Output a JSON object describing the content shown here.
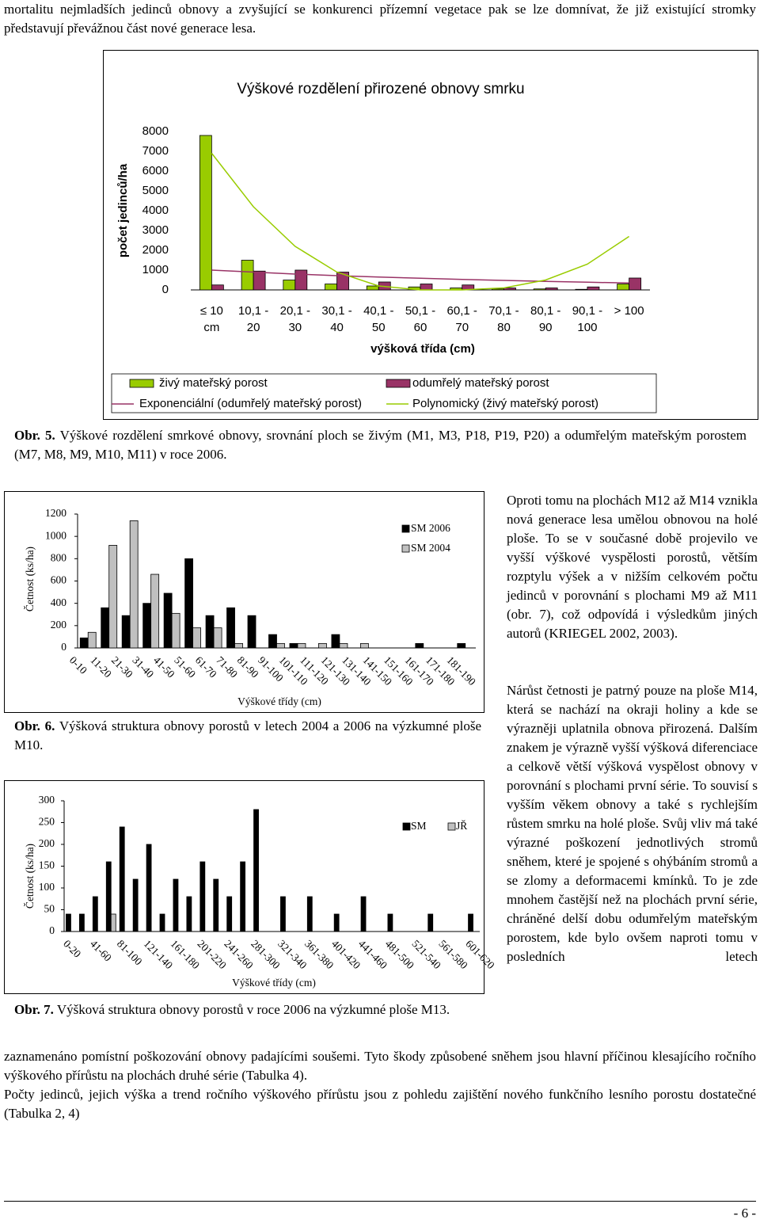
{
  "intro": "mortalitu nejmladších jedinců obnovy a zvyšující se konkurenci přízemní vegetace pak se lze domnívat, že již existující stromky představují převážnou část nové generace lesa.",
  "captions": [
    {
      "label": "Obr. 5.",
      "text": "Výškové rozdělení smrkové obnovy, srovnání ploch se živým (M1, M3, P18, P19, P20) a odumřelým mateřským porostem (M7, M8, M9, M10, M11) v roce 2006."
    },
    {
      "label": "Obr. 6.",
      "text": "Výšková struktura obnovy porostů v letech 2004 a 2006 na výzkumné ploše M10."
    },
    {
      "label": "Obr. 7.",
      "text": "Výšková struktura obnovy porostů v roce 2006 na výzkumné ploše M13."
    }
  ],
  "right_column": [
    "Oproti tomu na plochách M12 až M14 vznikla nová generace lesa umělou obnovou na holé ploše. To se v současné době projevilo ve vyšší výškové vyspělosti porostů, větším rozptylu výšek a v nižším celkovém počtu jedinců v porovnání s plochami M9 až M11 (obr. 7), což odpovídá i výsledkům jiných autorů (KRIEGEL 2002, 2003).",
    "Nárůst četnosti je patrný pouze na ploše M14, která se nachází na okraji holiny a kde se výrazněji uplatnila obnova přirozená. Dalším znakem je výrazně vyšší výšková diferenciace a celkově větší výšková vyspělost obnovy v porovnání s plochami první série. To souvisí s vyšším věkem obnovy a také s rychlejším růstem smrku na holé ploše. Svůj vliv má také výrazné poškození jednotlivých stromů sněhem, které je spojené s ohýbáním stromů a se zlomy a deformacemi kmínků. To je zde mnohem častější než na plochách první série, chráněné delší dobu odumřelým mateřským porostem, kde bylo ovšem naproti tomu v posledních letech"
  ],
  "continuation": "zaznamenáno pomístní poškozování obnovy padajícími soušemi. Tyto škody způsobené sněhem jsou hlavní příčinou klesajícího ročního výškového přírůstu na plochách druhé série (Tabulka 4).",
  "closing": "Počty jedinců, jejich výška a trend ročního výškového přírůstu jsou z pohledu zajištění nového funkčního lesního porostu dostatečné (Tabulka 2, 4)",
  "page_number": "- 6 -",
  "chart_data": [
    {
      "type": "bar",
      "title": "Výškové rozdělení přirozené obnovy smrku",
      "y_label": "počet jedinců/ha",
      "x_label": "výšková třída (cm)",
      "categories": [
        [
          "≤ 10",
          "cm"
        ],
        [
          "10,1 -",
          "20"
        ],
        [
          "20,1 -",
          "30"
        ],
        [
          "30,1 -",
          "40"
        ],
        [
          "40,1 -",
          "50"
        ],
        [
          "50,1 -",
          "60"
        ],
        [
          "60,1 -",
          "70"
        ],
        [
          "70,1 -",
          "80"
        ],
        [
          "80,1 -",
          "90"
        ],
        [
          "90,1 -",
          "100"
        ],
        [
          "> 100"
        ]
      ],
      "series": [
        {
          "name": "živý mateřský porost",
          "color": "#99cc00",
          "values": [
            7800,
            1500,
            500,
            300,
            200,
            150,
            100,
            50,
            50,
            30,
            300
          ]
        },
        {
          "name": "odumřelý mateřský porost",
          "color": "#993366",
          "values": [
            250,
            950,
            1000,
            900,
            400,
            300,
            250,
            100,
            100,
            150,
            600
          ]
        },
        {
          "name": "Exponenciální (odumřelý mateřský porost)",
          "type": "line",
          "color": "#993366",
          "values": [
            1000,
            900,
            800,
            720,
            650,
            590,
            530,
            480,
            430,
            390,
            350
          ]
        },
        {
          "name": "Polynomický (živý mateřský porost)",
          "type": "line",
          "color": "#99cc00",
          "values": [
            6900,
            4200,
            2200,
            900,
            200,
            0,
            0,
            100,
            500,
            1300,
            2700
          ]
        }
      ],
      "ylim": [
        0,
        8000
      ],
      "yticks": [
        0,
        1000,
        2000,
        3000,
        4000,
        5000,
        6000,
        7000,
        8000
      ],
      "grid": false,
      "legend": "bottom"
    },
    {
      "type": "bar",
      "y_label": "Četnost (ks/ha)",
      "x_label": "Výškové třídy (cm)",
      "categories": [
        "0-10",
        "11-20",
        "21-30",
        "31-40",
        "41-50",
        "51-60",
        "61-70",
        "71-80",
        "81-90",
        "91-100",
        "101-110",
        "111-120",
        "121-130",
        "131-140",
        "141-150",
        "151-160",
        "161-170",
        "171-180",
        "181-190"
      ],
      "series": [
        {
          "name": "SM 2006",
          "color": "#000000",
          "values": [
            90,
            360,
            290,
            400,
            490,
            800,
            290,
            360,
            290,
            120,
            40,
            0,
            120,
            0,
            0,
            0,
            40,
            0,
            40
          ]
        },
        {
          "name": "SM 2004",
          "color": "#c0c0c0",
          "values": [
            140,
            920,
            1140,
            660,
            310,
            180,
            180,
            40,
            0,
            40,
            40,
            40,
            40,
            40,
            0,
            0,
            0,
            0,
            0
          ]
        }
      ],
      "ylim": [
        0,
        1200
      ],
      "yticks": [
        0,
        200,
        400,
        600,
        800,
        1000,
        1200
      ],
      "grid": false,
      "legend": "top-right"
    },
    {
      "type": "bar",
      "y_label": "Četnost (ks/ha)",
      "x_label": "Výškové třídy (cm)",
      "categories": [
        "0-20",
        null,
        "41-60",
        null,
        "81-100",
        null,
        "121-140",
        null,
        "161-180",
        null,
        "201-220",
        null,
        "241-260",
        null,
        "281-300",
        null,
        "321-340",
        null,
        "361-380",
        null,
        "401-420",
        null,
        "441-460",
        null,
        "481-500",
        null,
        "521-540",
        null,
        "561-580",
        null,
        "601-620"
      ],
      "series": [
        {
          "name": "SM",
          "color": "#000000",
          "values": [
            40,
            40,
            80,
            160,
            240,
            120,
            200,
            40,
            120,
            80,
            160,
            120,
            80,
            160,
            280,
            0,
            80,
            0,
            80,
            0,
            40,
            0,
            80,
            0,
            40,
            0,
            0,
            40,
            0,
            0,
            40
          ]
        },
        {
          "name": "JŘ",
          "color": "#c0c0c0",
          "values": [
            0,
            0,
            0,
            40,
            0,
            0,
            0,
            0,
            0,
            0,
            0,
            0,
            0,
            0,
            0,
            0,
            0,
            0,
            0,
            0,
            0,
            0,
            0,
            0,
            0,
            0,
            0,
            0,
            0,
            0,
            0
          ]
        }
      ],
      "ylim": [
        0,
        300
      ],
      "yticks": [
        0,
        50,
        100,
        150,
        200,
        250,
        300
      ],
      "grid": false,
      "legend": "top-right"
    }
  ]
}
